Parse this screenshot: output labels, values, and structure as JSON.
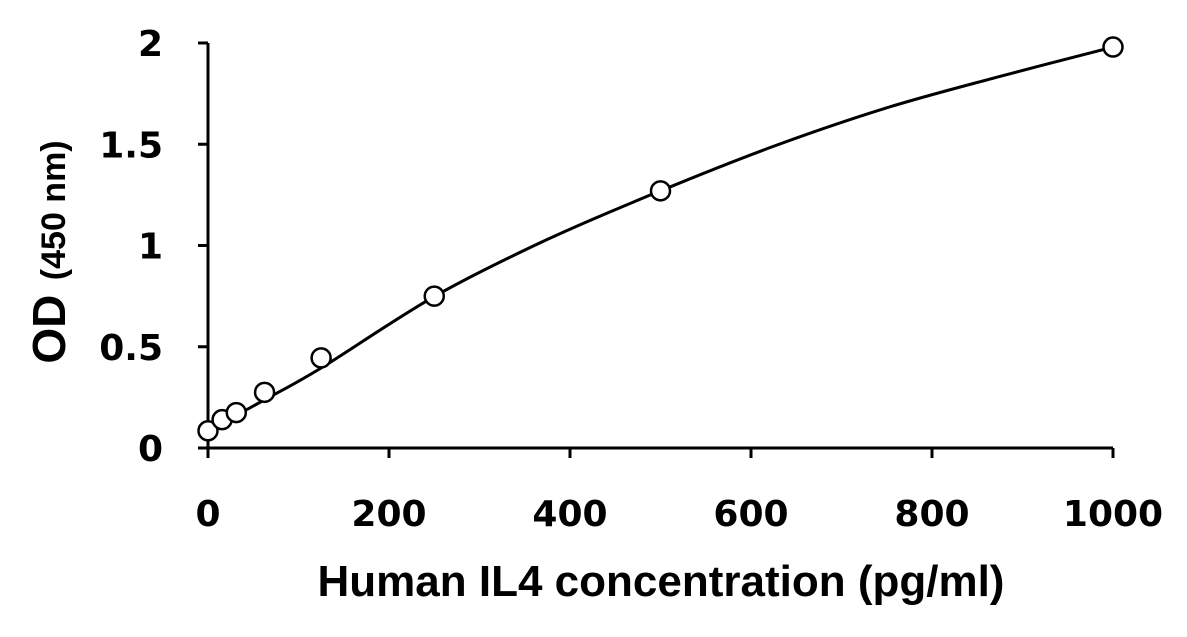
{
  "chart_data": {
    "type": "scatter",
    "title": "",
    "xlabel": "Human IL4 concentration (pg/ml)",
    "ylabel": {
      "main": "OD",
      "unit": "(450 nm)"
    },
    "xlim": [
      0,
      1000
    ],
    "ylim": [
      0,
      2
    ],
    "xticks": [
      0,
      200,
      400,
      600,
      800,
      1000
    ],
    "yticks": [
      0,
      0.5,
      1,
      1.5,
      2
    ],
    "xtick_labels": [
      "0",
      "200",
      "400",
      "600",
      "800",
      "1000"
    ],
    "ytick_labels": [
      "0",
      "0.5",
      "1",
      "1.5",
      "2"
    ],
    "grid": false,
    "legend": "none",
    "series": [
      {
        "marker": "open-circle",
        "x": [
          0,
          15.6,
          31.25,
          62.5,
          125,
          250,
          500,
          1000
        ],
        "y": [
          0.085,
          0.14,
          0.175,
          0.275,
          0.445,
          0.75,
          1.27,
          1.98
        ]
      }
    ],
    "fit_curve": {
      "style": "smooth-line",
      "x": [
        0,
        15.6,
        31.25,
        62.5,
        125,
        250,
        375,
        500,
        625,
        750,
        875,
        1000
      ],
      "y": [
        0.085,
        0.123,
        0.161,
        0.238,
        0.395,
        0.748,
        1.03,
        1.27,
        1.49,
        1.68,
        1.835,
        1.98
      ]
    },
    "colors": {
      "axis": "#000000",
      "series": "#000000",
      "background": "#ffffff"
    }
  }
}
